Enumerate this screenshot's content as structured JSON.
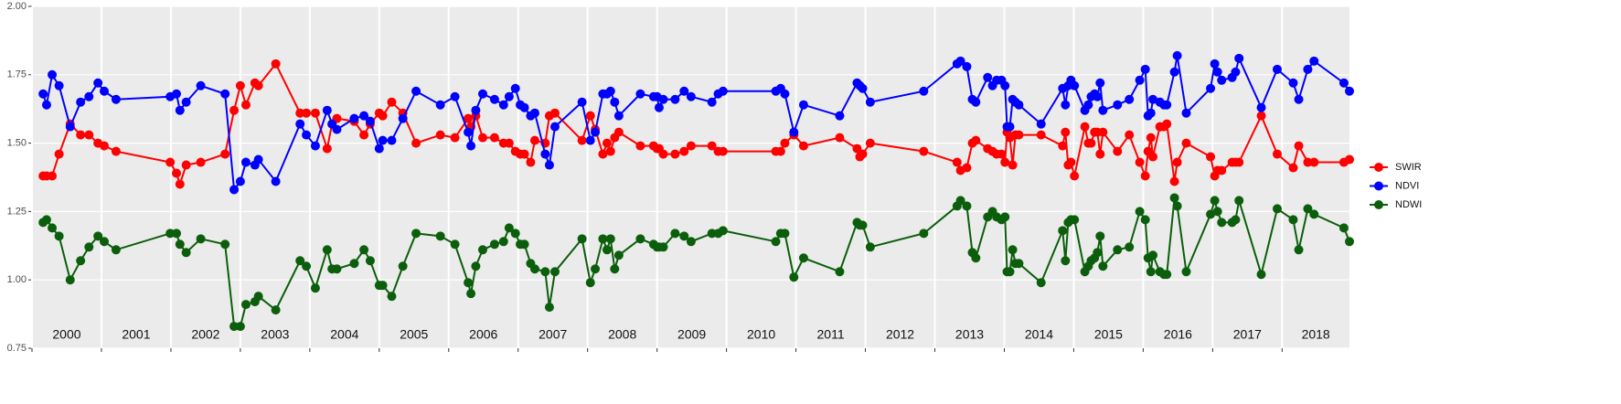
{
  "chart_data": {
    "type": "line",
    "x": [
      2000.16,
      2000.21,
      2000.29,
      2000.39,
      2000.55,
      2000.7,
      2000.82,
      2000.95,
      2001.04,
      2001.21,
      2001.99,
      2002.08,
      2002.13,
      2002.22,
      2002.43,
      2002.78,
      2002.91,
      2003.0,
      2003.08,
      2003.21,
      2003.26,
      2003.51,
      2003.86,
      2003.95,
      2004.08,
      2004.25,
      2004.32,
      2004.39,
      2004.64,
      2004.78,
      2004.87,
      2005.0,
      2005.05,
      2005.18,
      2005.34,
      2005.53,
      2005.88,
      2006.09,
      2006.28,
      2006.32,
      2006.39,
      2006.49,
      2006.66,
      2006.79,
      2006.87,
      2006.96,
      2007.03,
      2007.09,
      2007.18,
      2007.24,
      2007.39,
      2007.45,
      2007.53,
      2007.92,
      2008.04,
      2008.11,
      2008.22,
      2008.28,
      2008.33,
      2008.39,
      2008.45,
      2008.76,
      2008.95,
      2009.0,
      2009.03,
      2009.09,
      2009.26,
      2009.39,
      2009.49,
      2009.79,
      2009.88,
      2009.95,
      2010.71,
      2010.78,
      2010.84,
      2010.97,
      2011.11,
      2011.63,
      2011.88,
      2011.92,
      2011.96,
      2012.07,
      2012.84,
      2013.32,
      2013.37,
      2013.46,
      2013.54,
      2013.59,
      2013.76,
      2013.83,
      2013.89,
      2013.96,
      2014.01,
      2014.04,
      2014.08,
      2014.12,
      2014.16,
      2014.21,
      2014.53,
      2014.84,
      2014.88,
      2014.92,
      2014.96,
      2015.01,
      2015.16,
      2015.21,
      2015.25,
      2015.3,
      2015.34,
      2015.38,
      2015.42,
      2015.63,
      2015.8,
      2015.95,
      2016.03,
      2016.07,
      2016.11,
      2016.14,
      2016.24,
      2016.3,
      2016.34,
      2016.45,
      2016.49,
      2016.62,
      2016.97,
      2017.03,
      2017.07,
      2017.13,
      2017.28,
      2017.33,
      2017.38,
      2017.7,
      2017.93,
      2018.16,
      2018.24,
      2018.37,
      2018.46,
      2018.89,
      2018.97
    ],
    "series": [
      {
        "name": "SWIR",
        "color": "#ff0000",
        "values": [
          1.38,
          1.38,
          1.38,
          1.46,
          1.57,
          1.53,
          1.53,
          1.5,
          1.49,
          1.47,
          1.43,
          1.39,
          1.35,
          1.42,
          1.43,
          1.46,
          1.62,
          1.71,
          1.64,
          1.72,
          1.71,
          1.79,
          1.61,
          1.61,
          1.61,
          1.48,
          1.57,
          1.59,
          1.58,
          1.53,
          1.57,
          1.61,
          1.6,
          1.65,
          1.61,
          1.5,
          1.53,
          1.52,
          1.59,
          1.56,
          1.6,
          1.52,
          1.52,
          1.5,
          1.5,
          1.47,
          1.46,
          1.46,
          1.43,
          1.51,
          1.5,
          1.6,
          1.61,
          1.51,
          1.6,
          1.55,
          1.46,
          1.5,
          1.47,
          1.52,
          1.54,
          1.49,
          1.49,
          1.48,
          1.48,
          1.46,
          1.46,
          1.47,
          1.49,
          1.49,
          1.47,
          1.47,
          1.47,
          1.47,
          1.5,
          1.53,
          1.49,
          1.52,
          1.48,
          1.45,
          1.46,
          1.5,
          1.47,
          1.43,
          1.4,
          1.41,
          1.5,
          1.51,
          1.48,
          1.47,
          1.46,
          1.46,
          1.43,
          1.54,
          1.52,
          1.42,
          1.53,
          1.53,
          1.53,
          1.49,
          1.54,
          1.42,
          1.43,
          1.38,
          1.56,
          1.5,
          1.5,
          1.54,
          1.54,
          1.46,
          1.54,
          1.47,
          1.53,
          1.43,
          1.38,
          1.47,
          1.52,
          1.45,
          1.56,
          1.56,
          1.57,
          1.36,
          1.43,
          1.5,
          1.45,
          1.38,
          1.4,
          1.4,
          1.43,
          1.43,
          1.43,
          1.6,
          1.46,
          1.41,
          1.49,
          1.43,
          1.43,
          1.43,
          1.44
        ]
      },
      {
        "name": "NDVI",
        "color": "#0000ff",
        "values": [
          1.68,
          1.64,
          1.75,
          1.71,
          1.56,
          1.65,
          1.67,
          1.72,
          1.69,
          1.66,
          1.67,
          1.68,
          1.62,
          1.65,
          1.71,
          1.68,
          1.33,
          1.36,
          1.43,
          1.42,
          1.44,
          1.36,
          1.57,
          1.53,
          1.49,
          1.62,
          1.57,
          1.55,
          1.59,
          1.6,
          1.58,
          1.48,
          1.51,
          1.51,
          1.59,
          1.69,
          1.64,
          1.67,
          1.54,
          1.49,
          1.62,
          1.68,
          1.66,
          1.64,
          1.67,
          1.7,
          1.64,
          1.63,
          1.6,
          1.61,
          1.46,
          1.42,
          1.56,
          1.65,
          1.51,
          1.54,
          1.68,
          1.68,
          1.69,
          1.65,
          1.6,
          1.68,
          1.67,
          1.67,
          1.63,
          1.66,
          1.66,
          1.69,
          1.67,
          1.65,
          1.68,
          1.69,
          1.69,
          1.7,
          1.68,
          1.54,
          1.64,
          1.6,
          1.72,
          1.71,
          1.7,
          1.65,
          1.69,
          1.79,
          1.8,
          1.78,
          1.66,
          1.65,
          1.74,
          1.71,
          1.73,
          1.73,
          1.71,
          1.56,
          1.56,
          1.66,
          1.65,
          1.64,
          1.57,
          1.7,
          1.64,
          1.71,
          1.73,
          1.71,
          1.62,
          1.64,
          1.67,
          1.68,
          1.67,
          1.72,
          1.62,
          1.64,
          1.66,
          1.73,
          1.77,
          1.6,
          1.61,
          1.66,
          1.65,
          1.64,
          1.64,
          1.76,
          1.82,
          1.61,
          1.7,
          1.79,
          1.76,
          1.73,
          1.74,
          1.76,
          1.81,
          1.63,
          1.77,
          1.72,
          1.66,
          1.77,
          1.8,
          1.72,
          1.69
        ]
      },
      {
        "name": "NDWI",
        "color": "#0b5e0b",
        "values": [
          1.21,
          1.22,
          1.19,
          1.16,
          1.0,
          1.07,
          1.12,
          1.16,
          1.14,
          1.11,
          1.17,
          1.17,
          1.13,
          1.1,
          1.15,
          1.13,
          0.83,
          0.83,
          0.91,
          0.92,
          0.94,
          0.89,
          1.07,
          1.05,
          0.97,
          1.11,
          1.04,
          1.04,
          1.06,
          1.11,
          1.07,
          0.98,
          0.98,
          0.94,
          1.05,
          1.17,
          1.16,
          1.13,
          0.99,
          0.95,
          1.05,
          1.11,
          1.13,
          1.14,
          1.19,
          1.17,
          1.13,
          1.13,
          1.06,
          1.04,
          1.03,
          0.9,
          1.03,
          1.15,
          0.99,
          1.04,
          1.15,
          1.11,
          1.15,
          1.04,
          1.09,
          1.15,
          1.13,
          1.12,
          1.12,
          1.12,
          1.17,
          1.16,
          1.14,
          1.17,
          1.17,
          1.18,
          1.14,
          1.17,
          1.17,
          1.01,
          1.08,
          1.03,
          1.21,
          1.2,
          1.2,
          1.12,
          1.17,
          1.27,
          1.29,
          1.27,
          1.1,
          1.08,
          1.23,
          1.25,
          1.23,
          1.22,
          1.23,
          1.03,
          1.03,
          1.11,
          1.06,
          1.06,
          0.99,
          1.18,
          1.07,
          1.21,
          1.22,
          1.22,
          1.03,
          1.05,
          1.07,
          1.08,
          1.1,
          1.16,
          1.05,
          1.11,
          1.12,
          1.25,
          1.22,
          1.08,
          1.03,
          1.09,
          1.03,
          1.02,
          1.02,
          1.3,
          1.27,
          1.03,
          1.24,
          1.29,
          1.25,
          1.21,
          1.21,
          1.22,
          1.29,
          1.02,
          1.26,
          1.22,
          1.11,
          1.26,
          1.24,
          1.19,
          1.14
        ]
      }
    ],
    "xlim": [
      2000,
      2018.97
    ],
    "xticks": [
      {
        "value": 2000,
        "label": "2000"
      },
      {
        "value": 2001,
        "label": "2001"
      },
      {
        "value": 2002,
        "label": "2002"
      },
      {
        "value": 2003,
        "label": "2003"
      },
      {
        "value": 2004,
        "label": "2004"
      },
      {
        "value": 2005,
        "label": "2005"
      },
      {
        "value": 2006,
        "label": "2006"
      },
      {
        "value": 2007,
        "label": "2007"
      },
      {
        "value": 2008,
        "label": "2008"
      },
      {
        "value": 2009,
        "label": "2009"
      },
      {
        "value": 2010,
        "label": "2010"
      },
      {
        "value": 2011,
        "label": "2011"
      },
      {
        "value": 2012,
        "label": "2012"
      },
      {
        "value": 2013,
        "label": "2013"
      },
      {
        "value": 2014,
        "label": "2014"
      },
      {
        "value": 2015,
        "label": "2015"
      },
      {
        "value": 2016,
        "label": "2016"
      },
      {
        "value": 2017,
        "label": "2017"
      },
      {
        "value": 2018,
        "label": "2018"
      }
    ],
    "ylim": [
      0.75,
      2.0
    ],
    "yticks": [
      0.75,
      {
        "value": 1.0,
        "label": "1.00"
      },
      1.25,
      {
        "value": 1.5,
        "label": "1.50"
      },
      1.75,
      {
        "value": 2.0,
        "label": "2.00"
      }
    ],
    "grid": true
  }
}
